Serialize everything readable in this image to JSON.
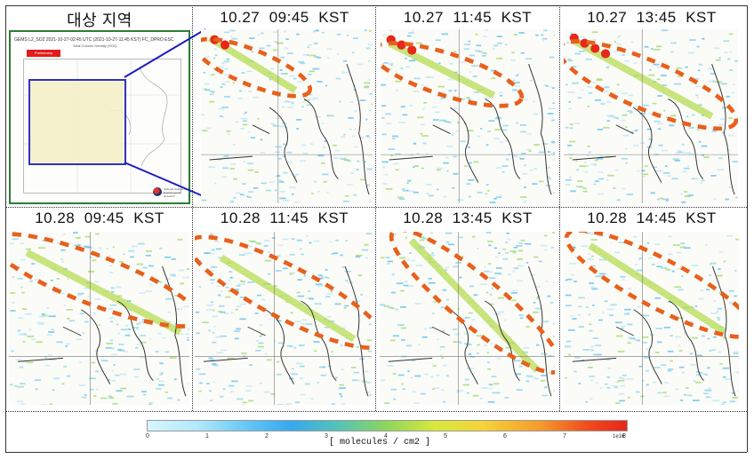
{
  "headers": {
    "region": "대상 지역",
    "p1": "10.27  09:45  KST",
    "p2": "10.27  11:45  KST",
    "p3": "10.27  13:45  KST",
    "p4": "10.28  09:45  KST",
    "p5": "10.28  11:45  KST",
    "p6": "10.28  13:45  KST",
    "p7": "10.28  14:45  KST"
  },
  "overview": {
    "title": "GEMS L2_SO2 2021-10-27-02:45 UTC (2021-10-27-11:45 KST)  FC_DPRO ESC",
    "subtitle": "Total Column Density (SO2)",
    "badge": "Preliminary",
    "logo_text": "National Institute of Environmental Research"
  },
  "colorbar": {
    "label": "[ molecules / cm2 ]",
    "ticks": [
      "0",
      "1",
      "2",
      "3",
      "4",
      "5",
      "6",
      "7",
      "8"
    ],
    "exponent": "1e16",
    "colors": [
      "#d6f6ff",
      "#5cc3f5",
      "#8fd65a",
      "#f6d33a",
      "#e8261a"
    ]
  },
  "plume_color": "#e8601c",
  "overview_box_color": "#1c1cc4",
  "overview_border_color": "#2e7d32"
}
